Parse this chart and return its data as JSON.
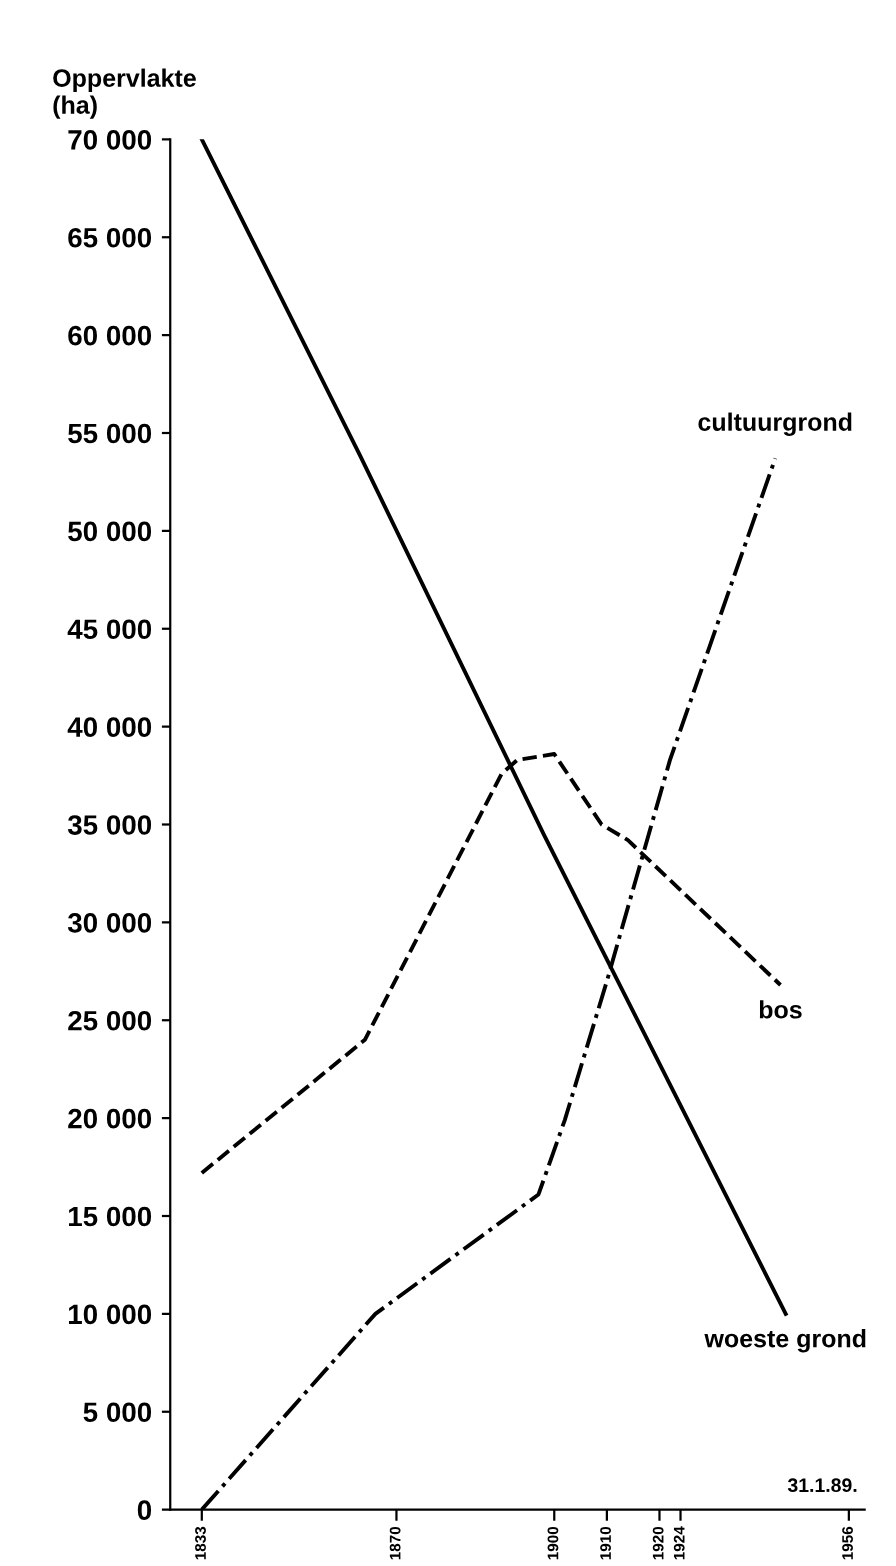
{
  "chart_data": {
    "type": "line",
    "ylabel": "Oppervlakte\n(ha)",
    "series": [
      {
        "name": "woeste grond",
        "color": "#000000",
        "line_style": "solid",
        "x": [
          1833,
          1863,
          1898,
          1944
        ],
        "values": [
          70000,
          53900,
          34500,
          10000
        ]
      },
      {
        "name": "bos",
        "color": "#000000",
        "line_style": "dashed",
        "x": [
          1833,
          1864,
          1890,
          1893,
          1900,
          1909,
          1914,
          1943
        ],
        "values": [
          17200,
          24000,
          37600,
          38300,
          38600,
          35000,
          34200,
          26800
        ]
      },
      {
        "name": "cultuurgrond",
        "color": "#000000",
        "line_style": "dashdot",
        "x": [
          1833,
          1866,
          1897,
          1902,
          1910,
          1922,
          1942
        ],
        "values": [
          0,
          10000,
          16100,
          19900,
          27000,
          38300,
          53700
        ]
      }
    ],
    "annotations": [
      "31.1.89."
    ],
    "xlim": [
      1827,
      1959
    ],
    "xticks": [
      1833,
      1870,
      1900,
      1910,
      1920,
      1924,
      1956
    ],
    "ylim": [
      0,
      70000
    ],
    "yticks": [
      {
        "value": 0,
        "label": "0"
      },
      {
        "value": 5000,
        "label": "5 000"
      },
      {
        "value": 10000,
        "label": "10 000"
      },
      {
        "value": 15000,
        "label": "15 000"
      },
      {
        "value": 20000,
        "label": "20 000"
      },
      {
        "value": 25000,
        "label": "25 000"
      },
      {
        "value": 30000,
        "label": "30 000"
      },
      {
        "value": 35000,
        "label": "35 000"
      },
      {
        "value": 40000,
        "label": "40 000"
      },
      {
        "value": 45000,
        "label": "45 000"
      },
      {
        "value": 50000,
        "label": "50 000"
      },
      {
        "value": 55000,
        "label": "55 000"
      },
      {
        "value": 60000,
        "label": "60 000"
      },
      {
        "value": 65000,
        "label": "65 000"
      },
      {
        "value": 70000,
        "label": "70 000"
      }
    ],
    "grid": false,
    "legend": false,
    "marker": "none"
  }
}
